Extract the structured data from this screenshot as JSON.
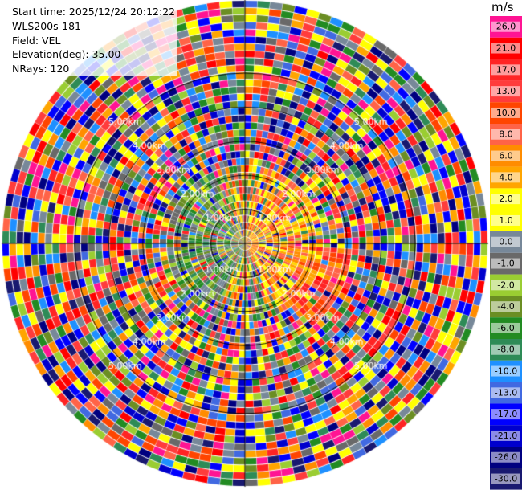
{
  "header": {
    "start_time": "Start time: 2025/12/24 20:12:22",
    "station": "WLS200s-181",
    "field": "Field: VEL",
    "elevation": "Elevation(deg): 35.00",
    "nrays": "NRays: 120"
  },
  "colorbar": {
    "unit": "m/s",
    "levels": [
      {
        "label": "26.0",
        "color": "#ff1493"
      },
      {
        "label": "21.0",
        "color": "#ff0000"
      },
      {
        "label": "17.0",
        "color": "#ff2424"
      },
      {
        "label": "13.0",
        "color": "#ff3c3c"
      },
      {
        "label": "10.0",
        "color": "#ff4500"
      },
      {
        "label": "8.0",
        "color": "#ff6347"
      },
      {
        "label": "6.0",
        "color": "#ff8c00"
      },
      {
        "label": "4.0",
        "color": "#ffa500"
      },
      {
        "label": "2.0",
        "color": "#ffff00"
      },
      {
        "label": "1.0",
        "color": "#ffff00"
      },
      {
        "label": "0.0",
        "color": "#778899"
      },
      {
        "label": "-1.0",
        "color": "#696969"
      },
      {
        "label": "-2.0",
        "color": "#9acd32"
      },
      {
        "label": "-4.0",
        "color": "#6b8e23"
      },
      {
        "label": "-6.0",
        "color": "#228b22"
      },
      {
        "label": "-8.0",
        "color": "#2e8b57"
      },
      {
        "label": "-10.0",
        "color": "#1e90ff"
      },
      {
        "label": "-13.0",
        "color": "#4169e1"
      },
      {
        "label": "-17.0",
        "color": "#0000ff"
      },
      {
        "label": "-21.0",
        "color": "#0000cd"
      },
      {
        "label": "-26.0",
        "color": "#000080"
      },
      {
        "label": "-30.0",
        "color": "#191970"
      }
    ]
  },
  "chart_data": {
    "type": "polar-ppi",
    "field": "VEL",
    "unit": "m/s",
    "nrays": 120,
    "elevation_deg": 35.0,
    "range_rings_km": [
      1,
      2,
      3,
      4,
      5
    ],
    "range_ring_labels": [
      "1.00km",
      "2.00km",
      "3.00km",
      "4.00km",
      "5.00km"
    ],
    "max_range_km": 5.5,
    "range_gates": 34,
    "note_pattern": "near-range (<2.3km) gates dominated by yellow/orange positive velocities in the NE/E sector and green/olive negative velocities in the W sector; far-range gates noisy across full scale"
  }
}
